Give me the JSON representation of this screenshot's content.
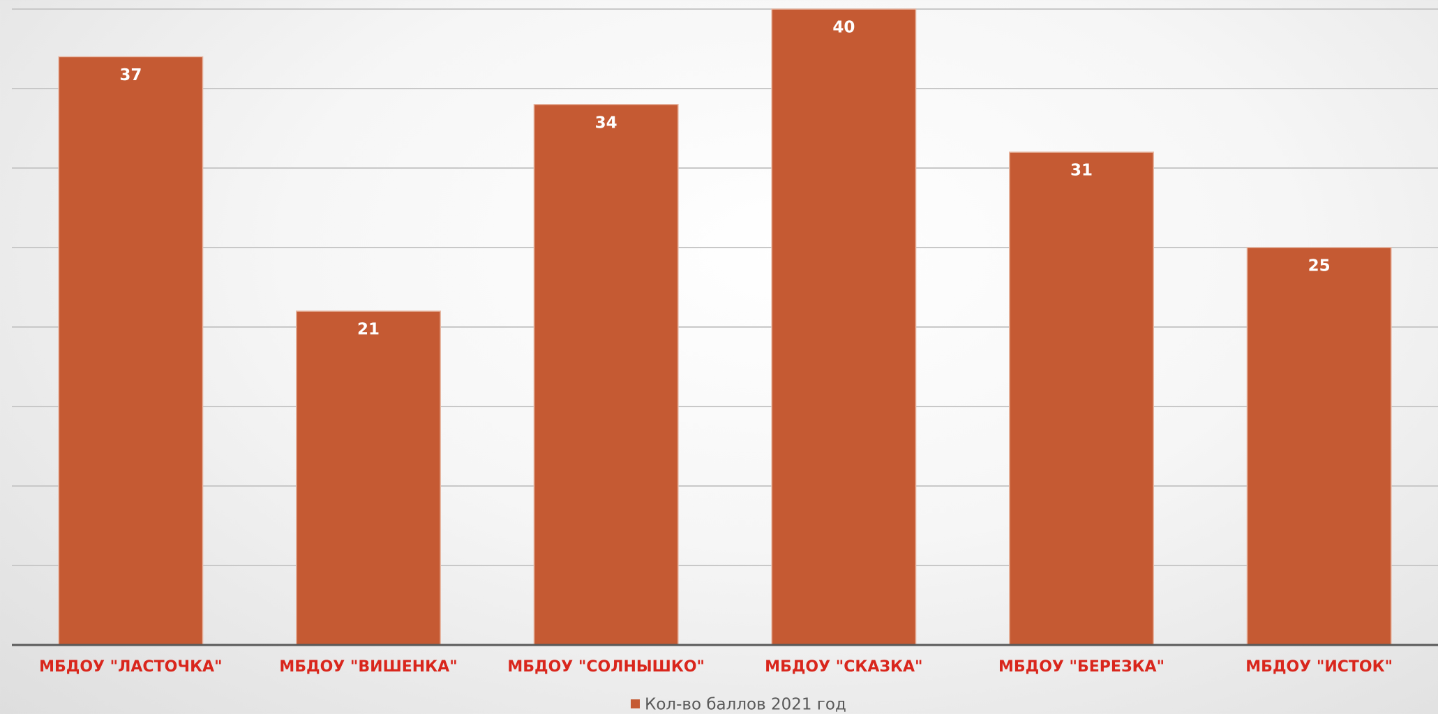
{
  "chart_data": {
    "type": "bar",
    "categories": [
      "МБДОУ \"ЛАСТОЧКА\"",
      "МБДОУ \"ВИШЕНКА\"",
      "МБДОУ \"СОЛНЫШКО\"",
      "МБДОУ \"СКАЗКА\"",
      "МБДОУ \"БЕРЕЗКА\"",
      "МБДОУ \"ИСТОК\""
    ],
    "series": [
      {
        "name": "Кол-во баллов 2021 год",
        "color": "#c55a33",
        "values": [
          37,
          21,
          34,
          40,
          31,
          25
        ]
      }
    ],
    "ylim": [
      0,
      40
    ],
    "yticks": [
      0,
      5,
      10,
      15,
      20,
      25,
      30,
      35,
      40
    ],
    "grid": true,
    "legend": "bottom",
    "category_label_color": "#d9261c"
  }
}
